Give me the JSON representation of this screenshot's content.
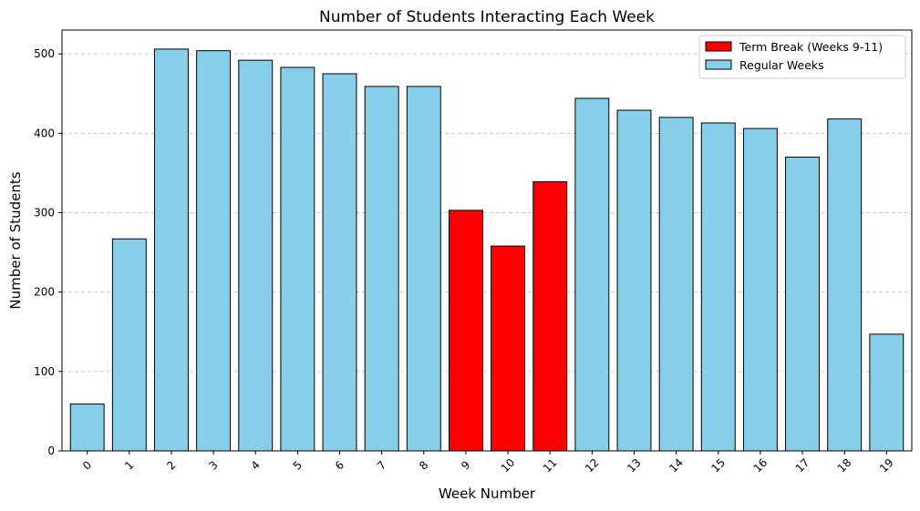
{
  "chart_data": {
    "type": "bar",
    "title": "Number of Students Interacting Each Week",
    "xlabel": "Week Number",
    "ylabel": "Number of Students",
    "categories": [
      "0",
      "1",
      "2",
      "3",
      "4",
      "5",
      "6",
      "7",
      "8",
      "9",
      "10",
      "11",
      "12",
      "13",
      "14",
      "15",
      "16",
      "17",
      "18",
      "19"
    ],
    "values": [
      59,
      267,
      506,
      504,
      492,
      483,
      475,
      459,
      459,
      303,
      258,
      339,
      444,
      429,
      420,
      413,
      406,
      370,
      418,
      147
    ],
    "highlight_categories": [
      "9",
      "10",
      "11"
    ],
    "ylim": [
      0,
      530
    ],
    "yticks": [
      0,
      100,
      200,
      300,
      400,
      500
    ],
    "grid": "y-dashed",
    "legend_position": "top-right",
    "legend": [
      {
        "label": "Term Break (Weeks 9-11)",
        "color": "#ff0000"
      },
      {
        "label": "Regular Weeks",
        "color": "#87ceeb"
      }
    ],
    "colors": {
      "regular": "#87ceeb",
      "highlight": "#ff0000",
      "edge": "#000000",
      "grid": "#c8c8c8"
    }
  }
}
